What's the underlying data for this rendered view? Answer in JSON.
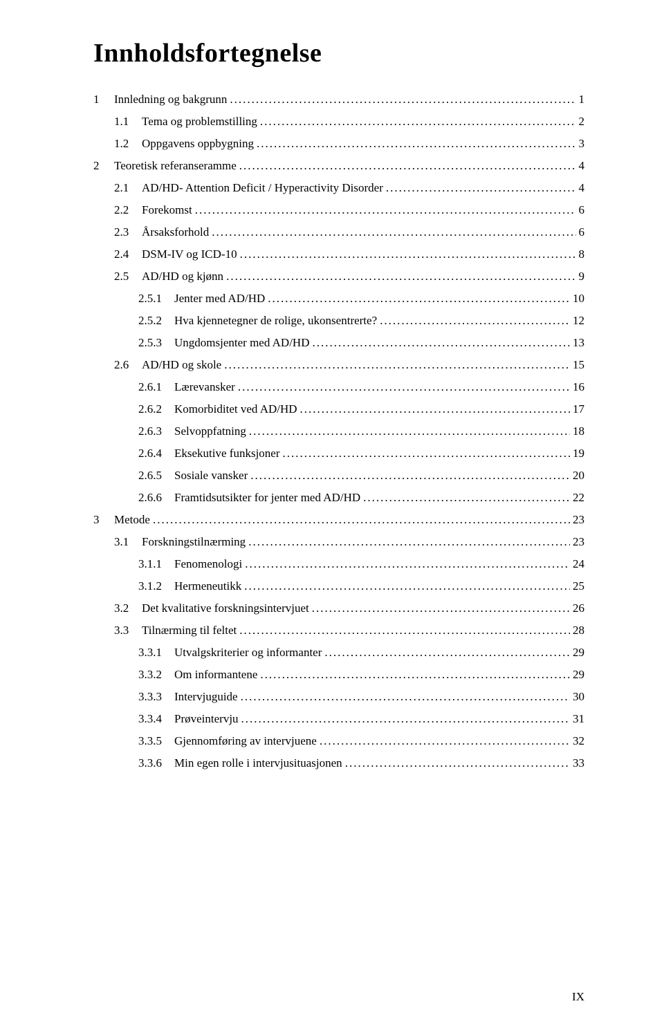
{
  "title": "Innholdsfortegnelse",
  "page_number": "IX",
  "font_family": "Times New Roman",
  "body_fontsize_pt": 12,
  "title_fontsize_pt": 28,
  "text_color": "#000000",
  "background_color": "#ffffff",
  "entries": [
    {
      "level": 0,
      "num": "1",
      "label": "Innledning og bakgrunn",
      "page": "1"
    },
    {
      "level": 1,
      "num": "1.1",
      "label": "Tema og problemstilling",
      "page": "2"
    },
    {
      "level": 1,
      "num": "1.2",
      "label": "Oppgavens oppbygning",
      "page": "3"
    },
    {
      "level": 0,
      "num": "2",
      "label": "Teoretisk referanseramme",
      "page": "4"
    },
    {
      "level": 1,
      "num": "2.1",
      "label": "AD/HD- Attention Deficit / Hyperactivity Disorder",
      "page": "4"
    },
    {
      "level": 1,
      "num": "2.2",
      "label": "Forekomst",
      "page": "6"
    },
    {
      "level": 1,
      "num": "2.3",
      "label": "Årsaksforhold",
      "page": "6"
    },
    {
      "level": 1,
      "num": "2.4",
      "label": "DSM-IV og ICD-10",
      "page": "8"
    },
    {
      "level": 1,
      "num": "2.5",
      "label": "AD/HD og kjønn",
      "page": "9"
    },
    {
      "level": 2,
      "num": "2.5.1",
      "label": "Jenter med AD/HD",
      "page": "10"
    },
    {
      "level": 2,
      "num": "2.5.2",
      "label": "Hva kjennetegner de rolige, ukonsentrerte?",
      "page": "12"
    },
    {
      "level": 2,
      "num": "2.5.3",
      "label": "Ungdomsjenter med AD/HD",
      "page": "13"
    },
    {
      "level": 1,
      "num": "2.6",
      "label": "AD/HD og skole",
      "page": "15"
    },
    {
      "level": 2,
      "num": "2.6.1",
      "label": "Lærevansker",
      "page": "16"
    },
    {
      "level": 2,
      "num": "2.6.2",
      "label": "Komorbiditet ved AD/HD",
      "page": "17"
    },
    {
      "level": 2,
      "num": "2.6.3",
      "label": "Selvoppfatning",
      "page": "18"
    },
    {
      "level": 2,
      "num": "2.6.4",
      "label": "Eksekutive funksjoner",
      "page": "19"
    },
    {
      "level": 2,
      "num": "2.6.5",
      "label": "Sosiale vansker",
      "page": "20"
    },
    {
      "level": 2,
      "num": "2.6.6",
      "label": "Framtidsutsikter for jenter med AD/HD",
      "page": "22"
    },
    {
      "level": 0,
      "num": "3",
      "label": "Metode",
      "page": "23"
    },
    {
      "level": 1,
      "num": "3.1",
      "label": "Forskningstilnærming",
      "page": "23"
    },
    {
      "level": 2,
      "num": "3.1.1",
      "label": "Fenomenologi",
      "page": "24"
    },
    {
      "level": 2,
      "num": "3.1.2",
      "label": "Hermeneutikk",
      "page": "25"
    },
    {
      "level": 1,
      "num": "3.2",
      "label": "Det kvalitative forskningsintervjuet",
      "page": "26"
    },
    {
      "level": 1,
      "num": "3.3",
      "label": "Tilnærming til feltet",
      "page": "28"
    },
    {
      "level": 2,
      "num": "3.3.1",
      "label": "Utvalgskriterier og informanter",
      "page": "29"
    },
    {
      "level": 2,
      "num": "3.3.2",
      "label": "Om informantene",
      "page": "29"
    },
    {
      "level": 2,
      "num": "3.3.3",
      "label": "Intervjuguide",
      "page": "30"
    },
    {
      "level": 2,
      "num": "3.3.4",
      "label": "Prøveintervju",
      "page": "31"
    },
    {
      "level": 2,
      "num": "3.3.5",
      "label": "Gjennomføring av intervjuene",
      "page": "32"
    },
    {
      "level": 2,
      "num": "3.3.6",
      "label": "Min egen rolle i intervjusituasjonen",
      "page": "33"
    }
  ]
}
